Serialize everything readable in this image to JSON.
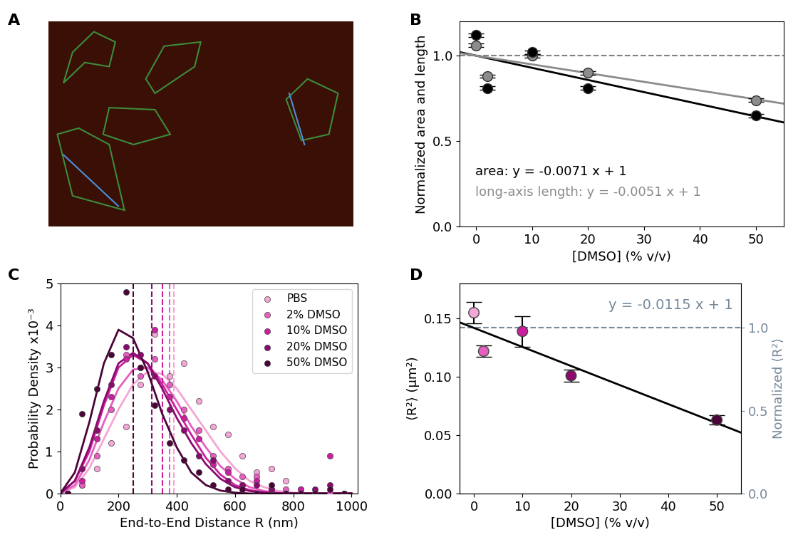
{
  "chart_data": [
    {
      "type": "image",
      "panel": "A"
    },
    {
      "type": "scatter",
      "panel": "B",
      "xlabel": "[DMSO] (% v/v)",
      "ylabel": "Normalized area and length",
      "xlim": [
        -3,
        55
      ],
      "ylim": [
        0,
        1.2
      ],
      "xticks": [
        0,
        10,
        20,
        30,
        40,
        50
      ],
      "yticks": [
        {
          "value": 0,
          "label": "0.0"
        },
        {
          "value": 0.5,
          "label": "0.5"
        },
        {
          "value": 1,
          "label": "1.0"
        }
      ],
      "reference_line": 1,
      "series": [
        {
          "color": "#000000",
          "x": [
            0,
            2,
            10,
            20,
            50
          ],
          "values": [
            1.12,
            0.81,
            1.02,
            0.81,
            0.65
          ],
          "errors": [
            0.01,
            0.01,
            0.01,
            0.01,
            0.01
          ],
          "fit": {
            "slope": -0.0071,
            "intercept": 1,
            "label": "area: y = -0.0071 x + 1"
          }
        },
        {
          "color": "#8c8c8c",
          "x": [
            0,
            2,
            10,
            20,
            50
          ],
          "values": [
            1.06,
            0.88,
            1.0,
            0.9,
            0.74
          ],
          "errors": [
            0.01,
            0.01,
            0.01,
            0.01,
            0.01
          ],
          "fit": {
            "slope": -0.0051,
            "intercept": 1,
            "label": "long-axis length: y = -0.0051 x + 1"
          }
        }
      ]
    },
    {
      "type": "scatter",
      "panel": "C",
      "xlabel": "End-to-End Distance R (nm)",
      "ylabel": "Probability Density x10⁻³",
      "xlim": [
        0,
        1020
      ],
      "ylim": [
        0,
        5
      ],
      "xticks": [
        0,
        200,
        400,
        600,
        800,
        1000
      ],
      "yticks": [
        0,
        1,
        2,
        3,
        4,
        5
      ],
      "legend": "upper right",
      "x": [
        25,
        75,
        125,
        175,
        225,
        275,
        325,
        375,
        425,
        475,
        525,
        575,
        625,
        675,
        725,
        775,
        825,
        875,
        925,
        975
      ],
      "curve_x": [
        0,
        50,
        100,
        150,
        200,
        250,
        300,
        350,
        400,
        450,
        500,
        550,
        600,
        650,
        700,
        750,
        800,
        850,
        900,
        950,
        1000
      ],
      "series": [
        {
          "name": "PBS",
          "color": "#f4a6d7",
          "mean": 390,
          "values": [
            0,
            0.2,
            0.6,
            1.2,
            1.6,
            2.6,
            3.8,
            2.8,
            3.1,
            2.2,
            1.6,
            1.4,
            0.9,
            0.5,
            0.6,
            0.3,
            0.1,
            0,
            0,
            0
          ],
          "curve": [
            0,
            0.15,
            0.6,
            1.3,
            2.0,
            2.6,
            2.9,
            2.85,
            2.5,
            2.0,
            1.5,
            1.0,
            0.6,
            0.3,
            0.15,
            0.06,
            0.02,
            0,
            0,
            0,
            0
          ]
        },
        {
          "name": "2% DMSO",
          "color": "#e65fc0",
          "mean": 375,
          "values": [
            0,
            0.2,
            0.9,
            2.0,
            3.3,
            2.8,
            3.2,
            2.6,
            2.0,
            1.5,
            0.9,
            0.6,
            0.4,
            0.4,
            0.1,
            0.1,
            0,
            0,
            0,
            0
          ],
          "curve": [
            0,
            0.2,
            0.8,
            1.7,
            2.5,
            2.95,
            3.0,
            2.7,
            2.2,
            1.6,
            1.1,
            0.65,
            0.35,
            0.15,
            0.06,
            0.02,
            0,
            0,
            0,
            0,
            0
          ]
        },
        {
          "name": "10% DMSO",
          "color": "#cc1f9f",
          "mean": 350,
          "values": [
            0,
            0.3,
            1.3,
            2.3,
            3.2,
            3.0,
            3.9,
            2.3,
            1.8,
            1.3,
            0.7,
            0.5,
            0.2,
            0.3,
            0.1,
            0,
            0.1,
            0,
            0.9,
            0
          ],
          "curve": [
            0,
            0.3,
            1.0,
            2.1,
            3.0,
            3.3,
            3.1,
            2.6,
            2.0,
            1.4,
            0.85,
            0.45,
            0.2,
            0.08,
            0.03,
            0,
            0,
            0,
            0,
            0,
            0
          ]
        },
        {
          "name": "20% DMSO",
          "color": "#8b0a6e",
          "mean": 315,
          "values": [
            0,
            0.6,
            1.5,
            2.6,
            3.5,
            3.3,
            2.8,
            2.0,
            1.5,
            0.9,
            0.8,
            0.3,
            0.2,
            0.2,
            0.1,
            0,
            0,
            0.1,
            0.2,
            0
          ],
          "curve": [
            0,
            0.3,
            1.1,
            2.2,
            3.1,
            3.35,
            3.1,
            2.5,
            1.8,
            1.2,
            0.7,
            0.35,
            0.15,
            0.06,
            0.02,
            0,
            0,
            0,
            0,
            0,
            0
          ]
        },
        {
          "name": "50% DMSO",
          "color": "#4a0437",
          "mean": 250,
          "values": [
            0,
            1.9,
            2.5,
            3.3,
            4.8,
            3.0,
            2.1,
            1.2,
            0.8,
            0.5,
            0.2,
            0.1,
            0.1,
            0,
            0.2,
            0,
            0,
            0,
            0.1,
            0
          ],
          "curve": [
            0,
            0.5,
            1.7,
            3.1,
            3.9,
            3.7,
            2.9,
            1.9,
            1.1,
            0.5,
            0.2,
            0.07,
            0.02,
            0,
            0,
            0,
            0,
            0,
            0,
            0,
            0
          ]
        }
      ]
    },
    {
      "type": "scatter",
      "panel": "D",
      "xlabel": "[DMSO] (% v/v)",
      "ylabel": "⟨R²⟩ (µm²)",
      "y2label": "Normalized ⟨R²⟩",
      "xlim": [
        -3,
        55
      ],
      "ylim": [
        0,
        0.18
      ],
      "y2lim": [
        0,
        1.268
      ],
      "xticks": [
        0,
        10,
        20,
        30,
        40,
        50
      ],
      "yticks": [
        {
          "value": 0,
          "label": "0.00"
        },
        {
          "value": 0.05,
          "label": "0.05"
        },
        {
          "value": 0.1,
          "label": "0.10"
        },
        {
          "value": 0.15,
          "label": "0.15"
        }
      ],
      "y2ticks": [
        {
          "value": 0,
          "label": "0.0"
        },
        {
          "value": 0.5,
          "label": "0.5"
        },
        {
          "value": 1,
          "label": "1.0"
        }
      ],
      "y2color": "#778899",
      "reference_line": 1,
      "fit": {
        "slope": -0.0115,
        "intercept": 1,
        "label": "y = -0.0115 x + 1",
        "axis": "y2",
        "color": "#000000"
      },
      "series": [
        {
          "x": [
            0,
            2,
            10,
            20,
            50
          ],
          "values": [
            0.155,
            0.122,
            0.139,
            0.101,
            0.063
          ],
          "errors": [
            0.009,
            0.005,
            0.013,
            0.005,
            0.004
          ],
          "colors": [
            "#f4a6d7",
            "#e65fc0",
            "#cc1f9f",
            "#8b0a6e",
            "#4a0437"
          ]
        }
      ]
    }
  ]
}
